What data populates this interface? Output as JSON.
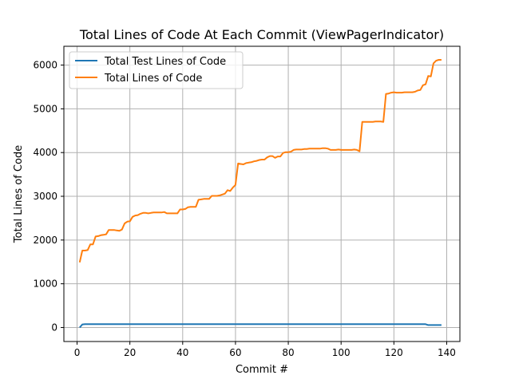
{
  "chart_data": {
    "type": "line",
    "title": "Total Lines of Code At Each Commit (ViewPagerIndicator)",
    "xlabel": "Commit #",
    "ylabel": "Total Lines of Code",
    "xlim": [
      -5,
      145
    ],
    "ylim": [
      -320,
      6430
    ],
    "xticks": [
      0,
      20,
      40,
      60,
      80,
      100,
      120,
      140
    ],
    "yticks": [
      0,
      1000,
      2000,
      3000,
      4000,
      5000,
      6000
    ],
    "grid": true,
    "legend_position": "top-left",
    "series": [
      {
        "name": "Total Test Lines of Code",
        "color": "#1f77b4",
        "points": [
          [
            1,
            0
          ],
          [
            2,
            70
          ],
          [
            3,
            75
          ],
          [
            132,
            75
          ],
          [
            133,
            55
          ],
          [
            138,
            55
          ]
        ]
      },
      {
        "name": "Total Lines of Code",
        "color": "#ff7f0e",
        "points": [
          [
            1,
            1490
          ],
          [
            2,
            1760
          ],
          [
            3,
            1760
          ],
          [
            4,
            1770
          ],
          [
            5,
            1900
          ],
          [
            6,
            1900
          ],
          [
            7,
            2080
          ],
          [
            8,
            2090
          ],
          [
            9,
            2110
          ],
          [
            10,
            2120
          ],
          [
            11,
            2130
          ],
          [
            12,
            2230
          ],
          [
            13,
            2230
          ],
          [
            14,
            2230
          ],
          [
            15,
            2220
          ],
          [
            16,
            2210
          ],
          [
            17,
            2240
          ],
          [
            18,
            2380
          ],
          [
            19,
            2420
          ],
          [
            20,
            2430
          ],
          [
            21,
            2530
          ],
          [
            22,
            2560
          ],
          [
            23,
            2570
          ],
          [
            24,
            2600
          ],
          [
            25,
            2620
          ],
          [
            26,
            2620
          ],
          [
            27,
            2610
          ],
          [
            28,
            2620
          ],
          [
            29,
            2630
          ],
          [
            30,
            2630
          ],
          [
            31,
            2630
          ],
          [
            32,
            2630
          ],
          [
            33,
            2640
          ],
          [
            34,
            2610
          ],
          [
            35,
            2610
          ],
          [
            36,
            2610
          ],
          [
            37,
            2610
          ],
          [
            38,
            2610
          ],
          [
            39,
            2700
          ],
          [
            40,
            2700
          ],
          [
            41,
            2710
          ],
          [
            42,
            2750
          ],
          [
            43,
            2760
          ],
          [
            44,
            2760
          ],
          [
            45,
            2760
          ],
          [
            46,
            2920
          ],
          [
            47,
            2930
          ],
          [
            48,
            2940
          ],
          [
            49,
            2940
          ],
          [
            50,
            2940
          ],
          [
            51,
            3010
          ],
          [
            52,
            3010
          ],
          [
            53,
            3010
          ],
          [
            54,
            3020
          ],
          [
            55,
            3040
          ],
          [
            56,
            3060
          ],
          [
            57,
            3140
          ],
          [
            58,
            3120
          ],
          [
            59,
            3200
          ],
          [
            60,
            3260
          ],
          [
            61,
            3750
          ],
          [
            62,
            3740
          ],
          [
            63,
            3730
          ],
          [
            64,
            3760
          ],
          [
            65,
            3770
          ],
          [
            66,
            3780
          ],
          [
            67,
            3800
          ],
          [
            68,
            3810
          ],
          [
            69,
            3830
          ],
          [
            70,
            3840
          ],
          [
            71,
            3840
          ],
          [
            72,
            3890
          ],
          [
            73,
            3920
          ],
          [
            74,
            3920
          ],
          [
            75,
            3880
          ],
          [
            76,
            3910
          ],
          [
            77,
            3910
          ],
          [
            78,
            3990
          ],
          [
            79,
            4010
          ],
          [
            80,
            4010
          ],
          [
            81,
            4020
          ],
          [
            82,
            4060
          ],
          [
            83,
            4070
          ],
          [
            84,
            4070
          ],
          [
            85,
            4070
          ],
          [
            86,
            4080
          ],
          [
            87,
            4080
          ],
          [
            88,
            4090
          ],
          [
            89,
            4090
          ],
          [
            90,
            4090
          ],
          [
            91,
            4090
          ],
          [
            92,
            4090
          ],
          [
            93,
            4100
          ],
          [
            94,
            4100
          ],
          [
            95,
            4090
          ],
          [
            96,
            4060
          ],
          [
            97,
            4060
          ],
          [
            98,
            4060
          ],
          [
            99,
            4070
          ],
          [
            100,
            4060
          ],
          [
            101,
            4060
          ],
          [
            102,
            4060
          ],
          [
            103,
            4060
          ],
          [
            104,
            4060
          ],
          [
            105,
            4070
          ],
          [
            106,
            4060
          ],
          [
            107,
            4030
          ],
          [
            108,
            4700
          ],
          [
            109,
            4700
          ],
          [
            110,
            4700
          ],
          [
            111,
            4700
          ],
          [
            112,
            4700
          ],
          [
            113,
            4710
          ],
          [
            114,
            4710
          ],
          [
            115,
            4710
          ],
          [
            116,
            4700
          ],
          [
            117,
            5340
          ],
          [
            118,
            5350
          ],
          [
            119,
            5370
          ],
          [
            120,
            5380
          ],
          [
            121,
            5370
          ],
          [
            122,
            5370
          ],
          [
            123,
            5370
          ],
          [
            124,
            5380
          ],
          [
            125,
            5380
          ],
          [
            126,
            5380
          ],
          [
            127,
            5380
          ],
          [
            128,
            5390
          ],
          [
            129,
            5420
          ],
          [
            130,
            5430
          ],
          [
            131,
            5540
          ],
          [
            132,
            5560
          ],
          [
            133,
            5750
          ],
          [
            134,
            5740
          ],
          [
            135,
            6040
          ],
          [
            136,
            6100
          ],
          [
            137,
            6120
          ],
          [
            138,
            6120
          ]
        ]
      }
    ]
  }
}
